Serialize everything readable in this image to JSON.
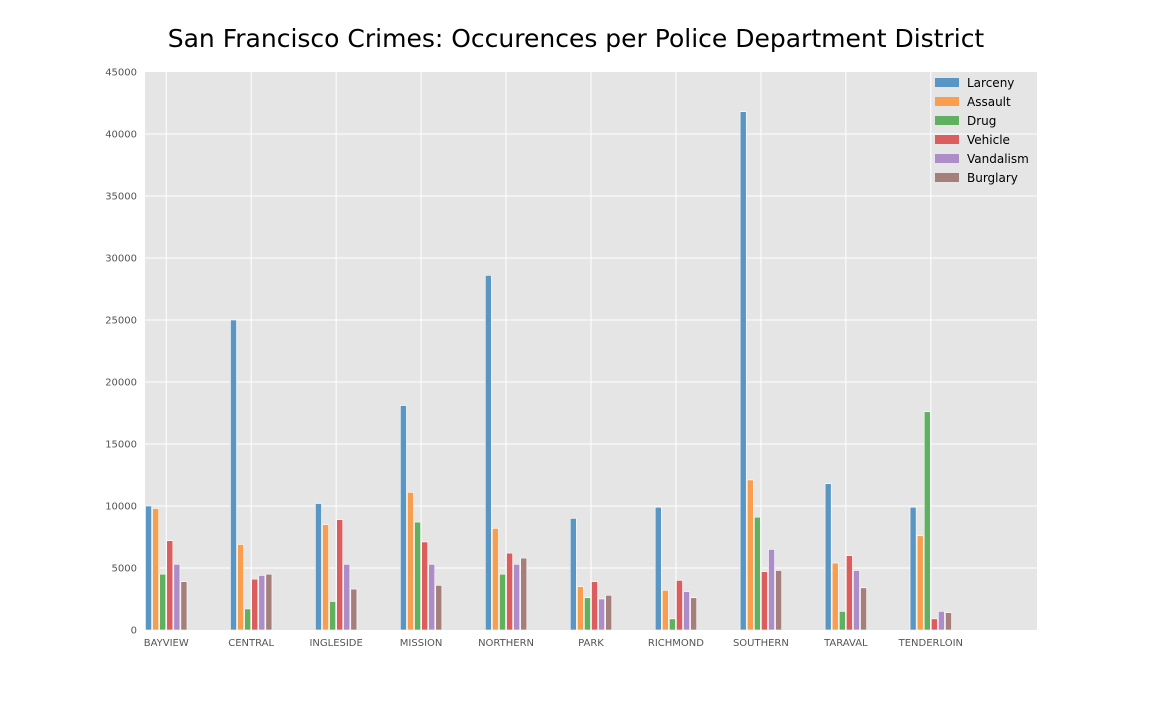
{
  "chart_data": {
    "type": "bar",
    "title": "San Francisco Crimes: Occurences per Police Department District",
    "xlabel": "",
    "ylabel": "",
    "ylim": [
      0,
      45000
    ],
    "yticks": [
      0,
      5000,
      10000,
      15000,
      20000,
      25000,
      30000,
      35000,
      40000,
      45000
    ],
    "grid": true,
    "legend_position": "top-right",
    "categories": [
      "BAYVIEW",
      "CENTRAL",
      "INGLESIDE",
      "MISSION",
      "NORTHERN",
      "PARK",
      "RICHMOND",
      "SOUTHERN",
      "TARAVAL",
      "TENDERLOIN"
    ],
    "series": [
      {
        "name": "Larceny",
        "color": "#5a96c3",
        "values": [
          10000,
          25000,
          10200,
          18100,
          28600,
          9000,
          9900,
          41800,
          11800,
          9900
        ]
      },
      {
        "name": "Assault",
        "color": "#f99e4e",
        "values": [
          9800,
          6900,
          8500,
          11100,
          8200,
          3500,
          3200,
          12100,
          5400,
          7600
        ]
      },
      {
        "name": "Drug",
        "color": "#60b15f",
        "values": [
          4500,
          1700,
          2300,
          8700,
          4500,
          2600,
          900,
          9100,
          1500,
          17600
        ]
      },
      {
        "name": "Vehicle",
        "color": "#db5d5d",
        "values": [
          7200,
          4100,
          8900,
          7100,
          6200,
          3900,
          4000,
          4700,
          6000,
          900
        ]
      },
      {
        "name": "Vandalism",
        "color": "#ac8dc8",
        "values": [
          5300,
          4400,
          5300,
          5300,
          5300,
          2500,
          3100,
          6500,
          4800,
          1500
        ]
      },
      {
        "name": "Burglary",
        "color": "#a57f79",
        "values": [
          3900,
          4500,
          3300,
          3600,
          5800,
          2800,
          2600,
          4800,
          3400,
          1400
        ]
      }
    ]
  }
}
